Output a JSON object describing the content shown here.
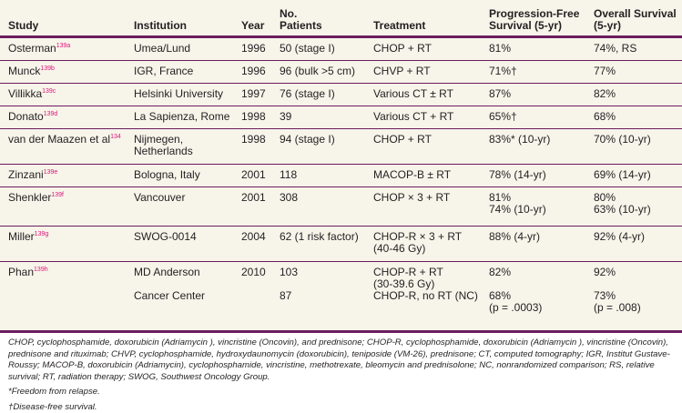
{
  "header": {
    "study": "Study",
    "institution": "Institution",
    "year": "Year",
    "patients": "No.\nPatients",
    "treatment": "Treatment",
    "pfs": "Progression-Free\nSurvival (5-yr)",
    "os": "Overall Survival\n(5-yr)"
  },
  "rows": [
    {
      "study": "Osterman",
      "ref": "139a",
      "institution": "Umea/Lund",
      "year": "1996",
      "patients": "  50 (stage I)",
      "treatment": "CHOP + RT",
      "pfs": "81%",
      "os": "74%, RS"
    },
    {
      "study": "Munck",
      "ref": "139b",
      "institution": "IGR, France",
      "year": "1996",
      "patients": "  96 (bulk >5 cm)",
      "treatment": "CHVP + RT",
      "pfs": "71%†",
      "os": "77%"
    },
    {
      "study": "Villikka",
      "ref": "139c",
      "institution": "Helsinki University",
      "year": "1997",
      "patients": "  76 (stage I)",
      "treatment": "Various CT ± RT",
      "pfs": "87%",
      "os": "82%"
    },
    {
      "study": "Donato",
      "ref": "139d",
      "institution": "La Sapienza, Rome",
      "year": "1998",
      "patients": "  39",
      "treatment": "Various CT + RT",
      "pfs": "65%†",
      "os": "68%"
    },
    {
      "study": "van der Maazen et al",
      "ref": "134",
      "institution": "Nijmegen,\n  Netherlands",
      "year": "1998",
      "patients": "  94 (stage I)",
      "treatment": "CHOP + RT",
      "pfs": "83%* (10-yr)",
      "os": "70% (10-yr)"
    },
    {
      "study": "Zinzani",
      "ref": "139e",
      "institution": "Bologna, Italy",
      "year": "2001",
      "patients": "118",
      "treatment": "MACOP-B ± RT",
      "pfs": "78% (14-yr)",
      "os": "69% (14-yr)"
    },
    {
      "study": "Shenkler",
      "ref": "139f",
      "institution": "Vancouver",
      "year": "2001",
      "patients": "308",
      "treatment": "CHOP × 3 + RT",
      "pfs": "81%\n74% (10-yr)",
      "os": "80%\n63% (10-yr)"
    },
    {
      "study": "Miller",
      "ref": "139g",
      "institution": "SWOG-0014",
      "year": "2004",
      "patients": "  62 (1 risk factor)",
      "treatment": "CHOP-R × 3 + RT\n  (40-46 Gy)",
      "pfs": "88% (4-yr)",
      "os": "92% (4-yr)"
    },
    {
      "study": "Phan",
      "ref": "139h",
      "institution": "MD Anderson\n\nCancer Center",
      "year": "2010",
      "patients": "103\n\n  87",
      "treatment": "CHOP-R + RT\n  (30-39.6 Gy)\nCHOP-R, no RT (NC)",
      "pfs": "82%\n\n68%\n(p = .0003)",
      "os": "92%\n\n73%\n(p = .008)"
    }
  ],
  "footnotes": {
    "abbreviations": "CHOP, cyclophosphamide, doxorubicin (Adriamycin ), vincristine (Oncovin), and prednisone; CHOP-R, cyclophosphamide, doxorubicin (Adriamycin ), vincristine (Oncovin), prednisone and rituximab; CHVP, cyclophosphamide, hydroxydaunomycin (doxorubicin), teniposide (VM-26), prednisone; CT, computed tomography; IGR, Institut Gustave-Roussy; MACOP-B, doxorubicin (Adriamycin), cyclophosphamide, vincristine, methotrexate, bleomycin and prednisolone; NC, nonrandomized comparison; RS, relative survival; RT, radiation therapy; SWOG, Southwest Oncology Group.",
    "star": "*Freedom from relapse.",
    "dagger": "†Disease-free survival."
  },
  "colors": {
    "rule": "#6b1d5e",
    "background": "#f7f4ea",
    "reference": "#e0157a"
  }
}
